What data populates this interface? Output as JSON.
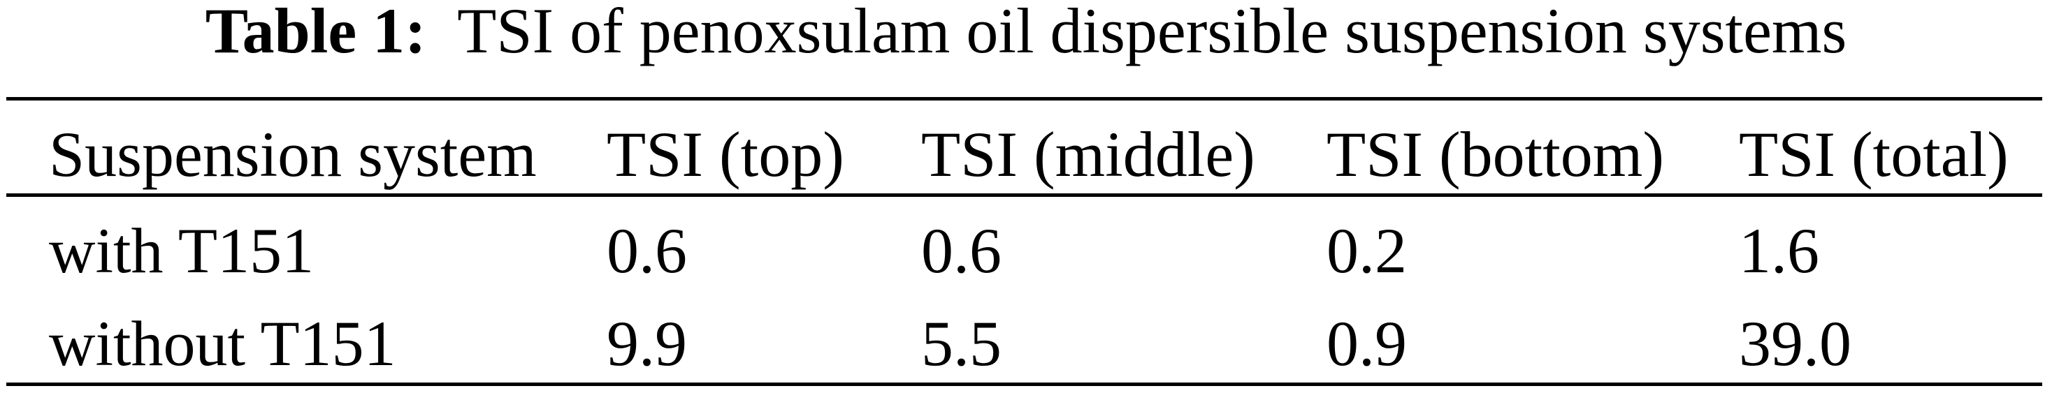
{
  "table": {
    "caption_label": "Table 1:",
    "caption_text": "TSI of penoxsulam oil dispersible suspension systems",
    "headers": [
      "Suspension system",
      "TSI (top)",
      "TSI (middle)",
      "TSI (bottom)",
      "TSI (total)"
    ],
    "rows": [
      [
        "with T151",
        "0.6",
        "0.6",
        "0.2",
        "1.6"
      ],
      [
        "without T151",
        "9.9",
        "5.5",
        "0.9",
        "39.0"
      ]
    ]
  }
}
